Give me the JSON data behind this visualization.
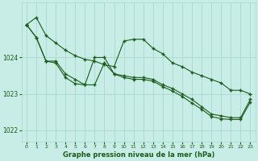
{
  "title": "Graphe pression niveau de la mer (hPa)",
  "background_color": "#c8ece6",
  "grid_color": "#a8d8cc",
  "line_color": "#1a5c1a",
  "ylim": [
    1021.7,
    1025.5
  ],
  "xlim": [
    -0.5,
    23.5
  ],
  "yticks": [
    1022,
    1023,
    1024
  ],
  "xticks": [
    0,
    1,
    2,
    3,
    4,
    5,
    6,
    7,
    8,
    9,
    10,
    11,
    12,
    13,
    14,
    15,
    16,
    17,
    18,
    19,
    20,
    21,
    22,
    23
  ],
  "series1": [
    1024.9,
    1025.1,
    1024.6,
    1024.4,
    1024.2,
    1024.05,
    1023.95,
    1023.9,
    1023.8,
    1023.75,
    1024.45,
    1024.5,
    1024.5,
    1024.25,
    1024.1,
    1023.85,
    1023.75,
    1023.6,
    1023.5,
    1023.4,
    1023.3,
    1023.1,
    1023.1,
    1023.0
  ],
  "series2": [
    1024.9,
    1024.55,
    1023.9,
    1023.9,
    1023.55,
    1023.4,
    1023.25,
    1024.0,
    1024.0,
    1023.55,
    1023.5,
    1023.45,
    1023.45,
    1023.4,
    1023.25,
    1023.15,
    1023.0,
    1022.85,
    1022.65,
    1022.45,
    1022.4,
    1022.35,
    1022.35,
    1022.85
  ],
  "series3": [
    1024.9,
    1024.55,
    1023.9,
    1023.85,
    1023.45,
    1023.28,
    1023.25,
    1023.25,
    1023.85,
    1023.55,
    1023.45,
    1023.4,
    1023.4,
    1023.35,
    1023.2,
    1023.08,
    1022.93,
    1022.75,
    1022.58,
    1022.38,
    1022.32,
    1022.3,
    1022.3,
    1022.78
  ]
}
